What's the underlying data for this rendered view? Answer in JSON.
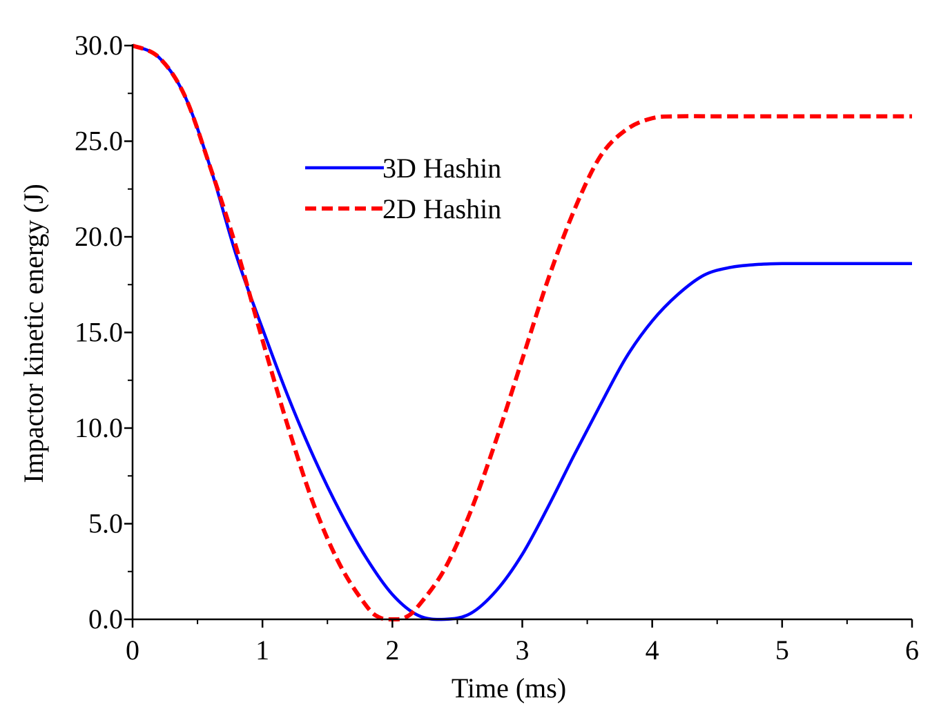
{
  "chart_data": {
    "type": "line",
    "title": "",
    "xlabel": "Time (ms)",
    "ylabel": "Impactor kinetic energy (J)",
    "xlim": [
      0,
      6
    ],
    "ylim": [
      0,
      30
    ],
    "x_ticks": [
      0,
      1,
      2,
      3,
      4,
      5,
      6
    ],
    "x_tick_labels": [
      "0",
      "1",
      "2",
      "3",
      "4",
      "5",
      "6"
    ],
    "y_ticks": [
      0,
      5,
      10,
      15,
      20,
      25,
      30
    ],
    "y_tick_labels": [
      "0.0",
      "5.0",
      "10.0",
      "15.0",
      "20.0",
      "25.0",
      "30.0"
    ],
    "grid": false,
    "legend_position": "upper-center",
    "series": [
      {
        "name": "3D Hashin",
        "color": "#0000ff",
        "style": "solid",
        "x": [
          0,
          0.2,
          0.4,
          0.6,
          0.8,
          1.0,
          1.2,
          1.4,
          1.6,
          1.8,
          2.0,
          2.2,
          2.4,
          2.6,
          2.8,
          3.0,
          3.2,
          3.4,
          3.6,
          3.8,
          4.0,
          4.2,
          4.4,
          4.6,
          4.8,
          5.0,
          5.2,
          5.5,
          6.0
        ],
        "values": [
          30.0,
          29.4,
          27.4,
          23.6,
          19.0,
          15.2,
          11.6,
          8.4,
          5.6,
          3.2,
          1.3,
          0.2,
          0.0,
          0.3,
          1.5,
          3.4,
          5.9,
          8.6,
          11.2,
          13.7,
          15.6,
          17.0,
          18.0,
          18.4,
          18.55,
          18.6,
          18.6,
          18.6,
          18.6
        ]
      },
      {
        "name": "2D Hashin",
        "color": "#ff0000",
        "style": "dashed",
        "x": [
          0,
          0.2,
          0.4,
          0.6,
          0.8,
          1.0,
          1.2,
          1.4,
          1.6,
          1.8,
          1.9,
          2.0,
          2.1,
          2.2,
          2.4,
          2.6,
          2.8,
          3.0,
          3.2,
          3.4,
          3.6,
          3.8,
          4.0,
          4.2,
          4.5,
          5.0,
          6.0
        ],
        "values": [
          30.0,
          29.4,
          27.4,
          23.6,
          19.4,
          14.6,
          10.0,
          5.9,
          2.8,
          0.7,
          0.1,
          0.0,
          0.1,
          0.7,
          2.6,
          5.6,
          9.4,
          13.6,
          17.8,
          21.4,
          24.2,
          25.6,
          26.2,
          26.3,
          26.3,
          26.3,
          26.3
        ]
      }
    ]
  }
}
